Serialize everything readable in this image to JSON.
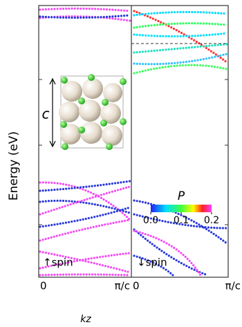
{
  "axes": {
    "y_label": "Energy (eV)",
    "x_label": "kz"
  },
  "panels": [
    {
      "label": "↑spin",
      "xticks": [
        "0",
        "π/c"
      ]
    },
    {
      "label": "↓spin",
      "xticks": [
        "0",
        "π/c"
      ]
    }
  ],
  "inset": {
    "label": "c"
  },
  "colorbar": {
    "title": "P",
    "range": [
      0,
      0.2
    ],
    "ticks": [
      {
        "value": 0,
        "label": "0.0"
      },
      0.1,
      {
        "value": 0.2,
        "label": "0.2"
      }
    ]
  }
}
